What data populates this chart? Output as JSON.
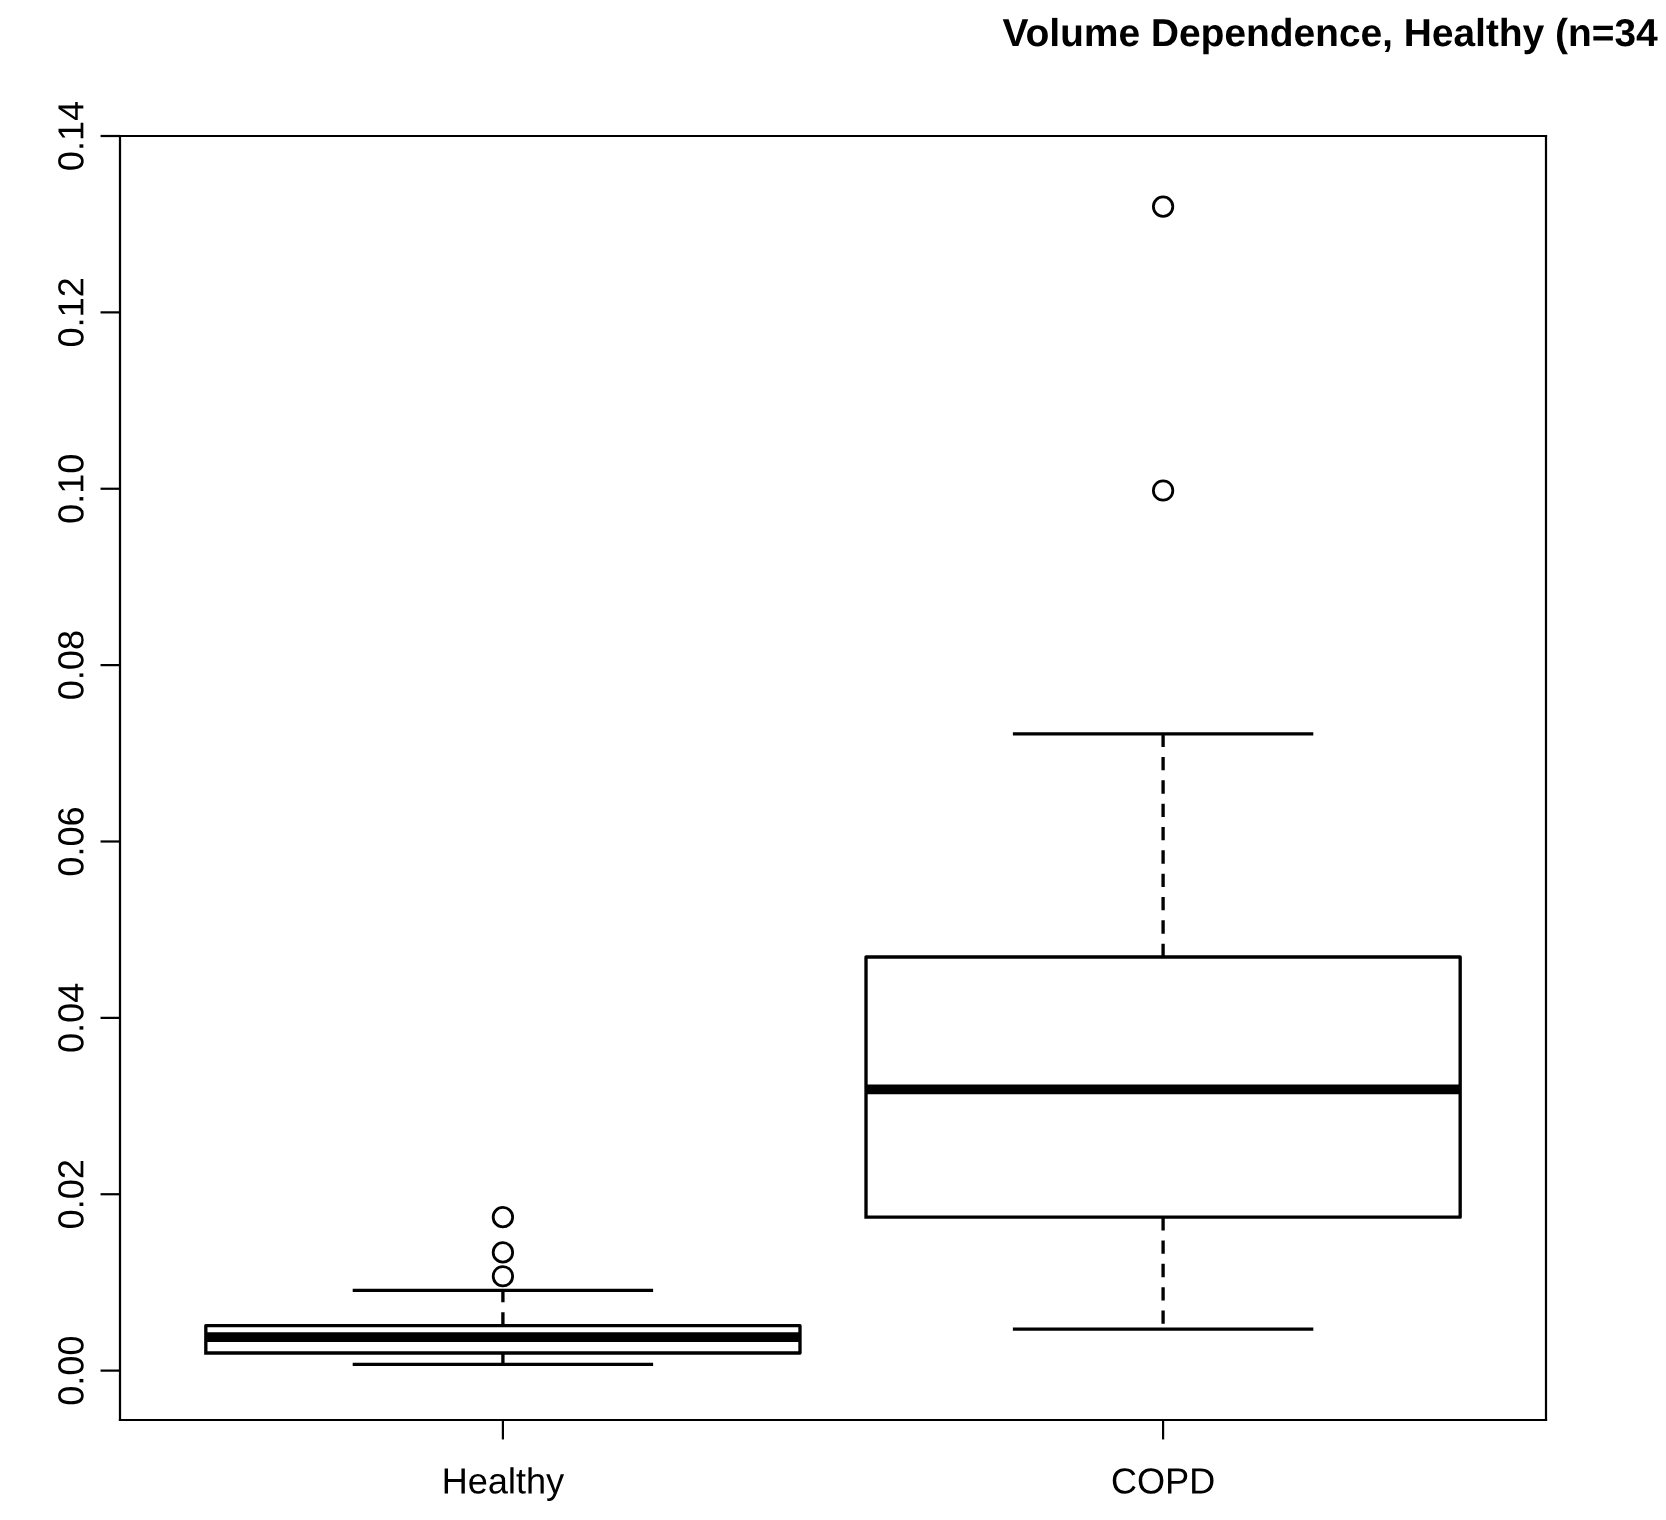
{
  "chart_data": {
    "type": "box",
    "title": "Volume Dependence, Healthy (n=34",
    "categories": [
      "Healthy",
      "COPD"
    ],
    "boxes": [
      {
        "low": 0.0007,
        "q1": 0.002,
        "median": 0.0038,
        "q3": 0.0051,
        "high": 0.0091,
        "outliers": [
          0.0107,
          0.0134,
          0.0174
        ]
      },
      {
        "low": 0.0047,
        "q1": 0.0174,
        "median": 0.0319,
        "q3": 0.0469,
        "high": 0.0722,
        "outliers": [
          0.0998,
          0.132
        ]
      }
    ],
    "ylim": [
      -0.0056,
      0.14
    ],
    "yticks": [
      {
        "value": 0,
        "label": "0.00"
      },
      {
        "value": 0.02,
        "label": "0.02"
      },
      {
        "value": 0.04,
        "label": "0.04"
      },
      {
        "value": 0.06,
        "label": "0.06"
      },
      {
        "value": 0.08,
        "label": "0.08"
      },
      {
        "value": 0.1,
        "label": "0.10"
      },
      {
        "value": 0.12,
        "label": "0.12"
      },
      {
        "value": 0.14,
        "label": "0.14"
      }
    ],
    "line_style": "dashed",
    "grid": false,
    "marker": "circle"
  }
}
